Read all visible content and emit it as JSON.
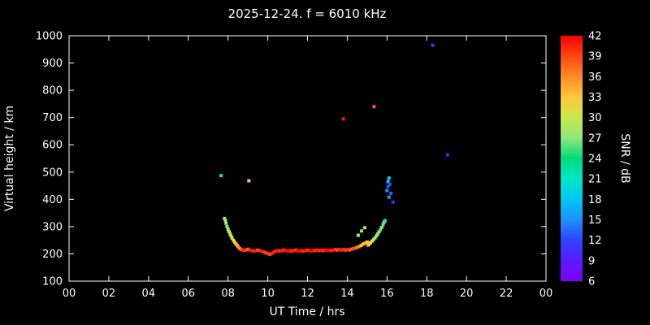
{
  "title": "2025-12-24. f = 6010 kHz",
  "chart_data": {
    "type": "scatter",
    "title": "2025-12-24. f = 6010 kHz",
    "xlabel": "UT Time / hrs",
    "ylabel": "Virtual height / km",
    "colorbar_label": "SNR / dB",
    "xlim": [
      0,
      24
    ],
    "ylim": [
      100,
      1000
    ],
    "x_ticks": [
      0,
      2,
      4,
      6,
      8,
      10,
      12,
      14,
      16,
      18,
      20,
      22,
      24
    ],
    "x_tick_labels": [
      "00",
      "02",
      "04",
      "06",
      "08",
      "10",
      "12",
      "14",
      "16",
      "18",
      "20",
      "22",
      "00"
    ],
    "y_ticks": [
      100,
      200,
      300,
      400,
      500,
      600,
      700,
      800,
      900,
      1000
    ],
    "snr_range": [
      6,
      42
    ],
    "snr_ticks": [
      6,
      9,
      12,
      15,
      18,
      21,
      24,
      27,
      30,
      33,
      36,
      39,
      42
    ],
    "background": "#000000",
    "axis_color": "#ffffff",
    "grid": false,
    "legend_position": "none",
    "colormap_anchors": [
      {
        "value": 6,
        "color": "#7d00ff"
      },
      {
        "value": 9,
        "color": "#5a1aff"
      },
      {
        "value": 12,
        "color": "#2d44ff"
      },
      {
        "value": 15,
        "color": "#1e90ff"
      },
      {
        "value": 18,
        "color": "#00c8f0"
      },
      {
        "value": 21,
        "color": "#00e6c8"
      },
      {
        "value": 24,
        "color": "#00dc78"
      },
      {
        "value": 27,
        "color": "#8ce87c"
      },
      {
        "value": 30,
        "color": "#c8e84a"
      },
      {
        "value": 33,
        "color": "#ffc83c"
      },
      {
        "value": 36,
        "color": "#ff8c28"
      },
      {
        "value": 39,
        "color": "#ff4614"
      },
      {
        "value": 42,
        "color": "#ff0000"
      }
    ],
    "points_format": "[ut_hour, virtual_height_km, snr_db]",
    "points": [
      [
        7.65,
        487,
        21
      ],
      [
        7.82,
        330,
        27
      ],
      [
        7.87,
        322,
        29
      ],
      [
        7.9,
        312,
        28
      ],
      [
        7.95,
        300,
        27
      ],
      [
        8.0,
        290,
        29
      ],
      [
        8.05,
        282,
        30
      ],
      [
        8.1,
        274,
        29
      ],
      [
        8.15,
        266,
        31
      ],
      [
        8.2,
        258,
        30
      ],
      [
        8.27,
        250,
        31
      ],
      [
        8.33,
        243,
        32
      ],
      [
        8.4,
        236,
        33
      ],
      [
        8.47,
        230,
        34
      ],
      [
        8.53,
        224,
        35
      ],
      [
        8.6,
        219,
        36
      ],
      [
        8.68,
        216,
        38
      ],
      [
        8.75,
        213,
        40
      ],
      [
        8.82,
        212,
        41
      ],
      [
        8.9,
        214,
        39
      ],
      [
        9.0,
        217,
        38
      ],
      [
        9.1,
        214,
        40
      ],
      [
        9.2,
        212,
        41
      ],
      [
        9.3,
        210,
        40
      ],
      [
        9.4,
        212,
        41
      ],
      [
        9.5,
        214,
        39
      ],
      [
        9.6,
        212,
        40
      ],
      [
        9.7,
        209,
        41
      ],
      [
        9.8,
        207,
        40
      ],
      [
        9.9,
        204,
        39
      ],
      [
        10.0,
        201,
        40
      ],
      [
        10.1,
        198,
        39
      ],
      [
        10.2,
        201,
        40
      ],
      [
        10.3,
        206,
        41
      ],
      [
        10.4,
        210,
        40
      ],
      [
        10.5,
        212,
        41
      ],
      [
        10.6,
        210,
        40
      ],
      [
        10.7,
        212,
        41
      ],
      [
        10.8,
        214,
        40
      ],
      [
        10.9,
        212,
        41
      ],
      [
        11.0,
        210,
        42
      ],
      [
        11.1,
        212,
        41
      ],
      [
        11.2,
        210,
        40
      ],
      [
        11.3,
        212,
        41
      ],
      [
        11.4,
        214,
        40
      ],
      [
        11.5,
        212,
        41
      ],
      [
        11.6,
        210,
        42
      ],
      [
        11.7,
        212,
        41
      ],
      [
        11.8,
        210,
        40
      ],
      [
        11.9,
        212,
        41
      ],
      [
        12.0,
        214,
        40
      ],
      [
        12.1,
        212,
        41
      ],
      [
        12.2,
        210,
        42
      ],
      [
        12.3,
        212,
        41
      ],
      [
        12.4,
        212,
        40
      ],
      [
        12.5,
        214,
        41
      ],
      [
        12.6,
        212,
        40
      ],
      [
        12.7,
        214,
        41
      ],
      [
        12.8,
        212,
        40
      ],
      [
        12.9,
        214,
        41
      ],
      [
        13.0,
        212,
        42
      ],
      [
        13.1,
        214,
        41
      ],
      [
        13.2,
        212,
        40
      ],
      [
        13.3,
        214,
        41
      ],
      [
        13.4,
        216,
        40
      ],
      [
        13.5,
        214,
        39
      ],
      [
        13.6,
        216,
        40
      ],
      [
        13.7,
        214,
        41
      ],
      [
        13.8,
        216,
        40
      ],
      [
        13.9,
        214,
        39
      ],
      [
        14.0,
        216,
        40
      ],
      [
        14.1,
        214,
        39
      ],
      [
        14.2,
        217,
        38
      ],
      [
        14.3,
        219,
        39
      ],
      [
        14.4,
        221,
        38
      ],
      [
        14.5,
        224,
        37
      ],
      [
        14.6,
        227,
        36
      ],
      [
        14.7,
        231,
        34
      ],
      [
        14.8,
        236,
        33
      ],
      [
        14.9,
        239,
        34
      ],
      [
        15.0,
        243,
        32
      ],
      [
        15.05,
        232,
        35
      ],
      [
        15.1,
        236,
        33
      ],
      [
        15.17,
        241,
        32
      ],
      [
        14.55,
        268,
        29
      ],
      [
        14.72,
        284,
        27
      ],
      [
        14.88,
        296,
        28
      ],
      [
        15.25,
        247,
        30
      ],
      [
        15.33,
        253,
        29
      ],
      [
        15.4,
        259,
        28
      ],
      [
        15.47,
        266,
        29
      ],
      [
        15.53,
        273,
        27
      ],
      [
        15.6,
        281,
        28
      ],
      [
        15.67,
        289,
        26
      ],
      [
        15.73,
        297,
        27
      ],
      [
        15.8,
        307,
        26
      ],
      [
        15.85,
        316,
        27
      ],
      [
        15.9,
        322,
        25
      ],
      [
        16.0,
        432,
        15
      ],
      [
        16.05,
        447,
        13
      ],
      [
        16.05,
        465,
        18
      ],
      [
        16.1,
        478,
        20
      ],
      [
        16.1,
        408,
        16
      ],
      [
        16.15,
        455,
        12
      ],
      [
        16.2,
        422,
        13
      ],
      [
        16.3,
        390,
        10
      ],
      [
        9.05,
        468,
        33
      ],
      [
        13.8,
        695,
        41
      ],
      [
        15.35,
        740,
        38
      ],
      [
        18.3,
        965,
        12
      ],
      [
        19.05,
        563,
        9
      ]
    ]
  }
}
